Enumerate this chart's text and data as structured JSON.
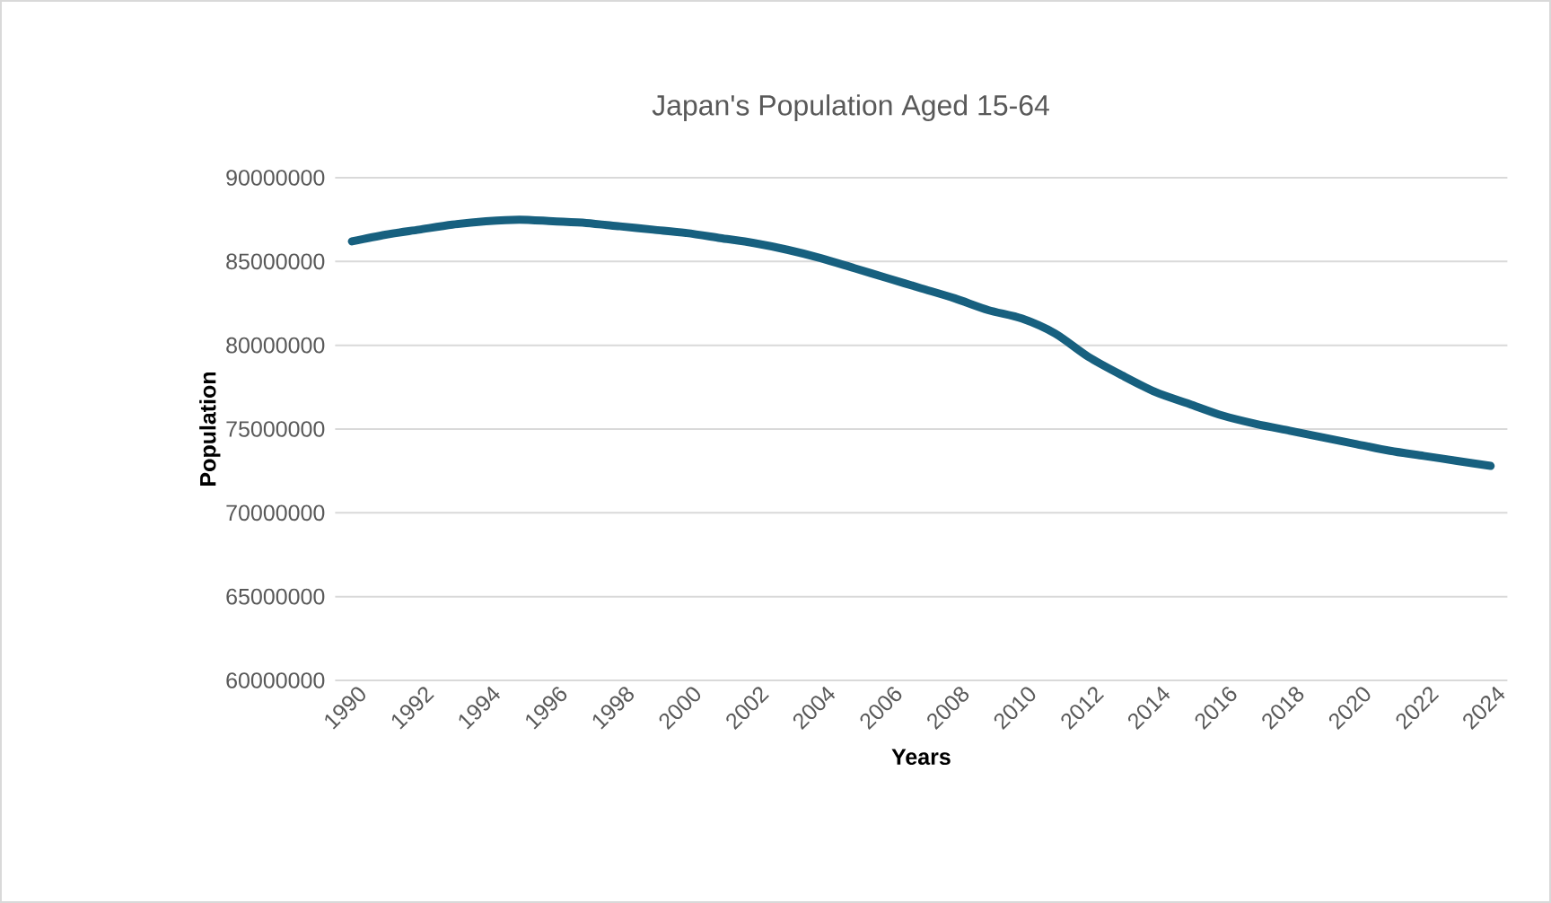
{
  "chart_data": {
    "type": "line",
    "title": "Japan's Population Aged 15-64",
    "xlabel": "Years",
    "ylabel": "Population",
    "categories": [
      "1990",
      null,
      "1992",
      null,
      "1994",
      null,
      "1996",
      null,
      "1998",
      null,
      "2000",
      null,
      "2002",
      null,
      "2004",
      null,
      "2006",
      null,
      "2008",
      null,
      "2010",
      null,
      "2012",
      null,
      "2014",
      null,
      "2016",
      null,
      "2018",
      null,
      "2020",
      null,
      "2022",
      null,
      "2024"
    ],
    "series": [
      {
        "color": "#17607f",
        "values": [
          86200000,
          86600000,
          86900000,
          87200000,
          87400000,
          87500000,
          87400000,
          87300000,
          87100000,
          86900000,
          86700000,
          86400000,
          86100000,
          85700000,
          85200000,
          84600000,
          84000000,
          83400000,
          82800000,
          82100000,
          81600000,
          80700000,
          79300000,
          78200000,
          77200000,
          76500000,
          75800000,
          75300000,
          74900000,
          74500000,
          74100000,
          73700000,
          73400000,
          73100000,
          72800000
        ]
      }
    ],
    "ylim": [
      60000000,
      90000000
    ],
    "yticks": [
      60000000,
      65000000,
      70000000,
      75000000,
      80000000,
      85000000,
      90000000
    ],
    "grid": "y",
    "line_style": "solid"
  }
}
